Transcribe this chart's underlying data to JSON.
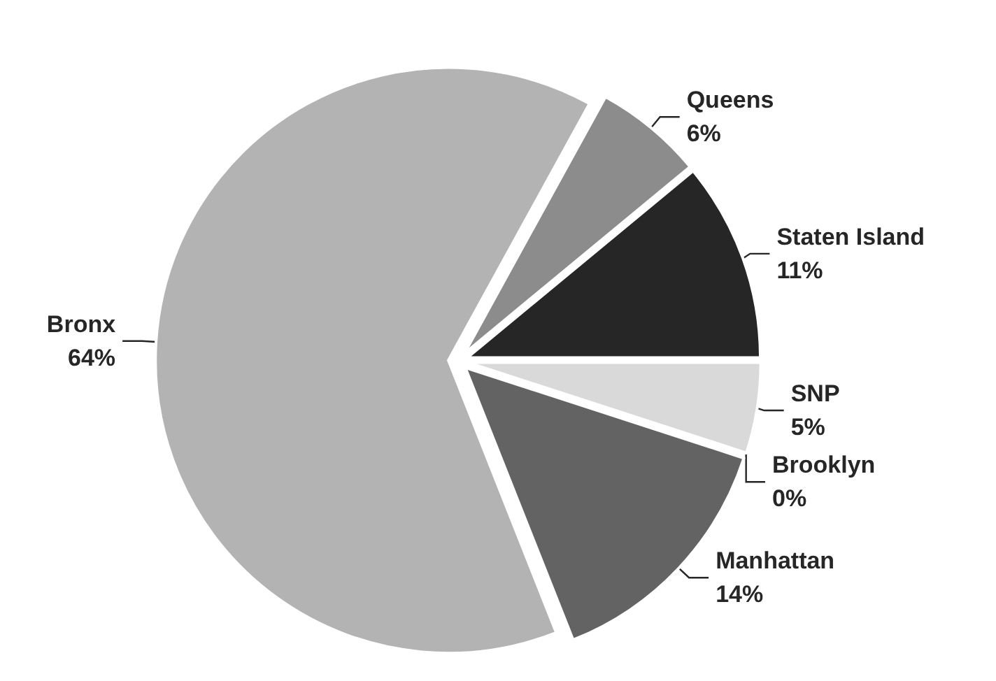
{
  "chart_data": {
    "type": "pie",
    "categories": [
      "Queens",
      "Staten Island",
      "SNP",
      "Brooklyn",
      "Manhattan",
      "Bronx"
    ],
    "values": [
      6,
      11,
      5,
      0,
      14,
      64
    ],
    "colors": [
      "#8c8c8c",
      "#262626",
      "#d9d9d9",
      "#ffffff",
      "#636363",
      "#b3b3b3"
    ],
    "value_labels": [
      "6%",
      "11%",
      "5%",
      "0%",
      "14%",
      "64%"
    ]
  }
}
